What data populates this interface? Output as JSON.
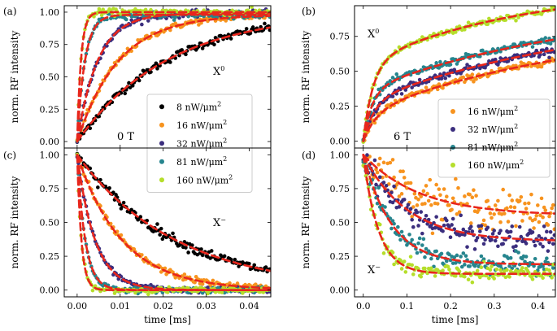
{
  "figure": {
    "xlabel": "time [ms]",
    "ylabel": "norm. RF intensity"
  },
  "chart_data": [
    {
      "panel": "(a)",
      "type": "scatter",
      "title": "",
      "xlabel": "",
      "ylabel": "norm. RF intensity",
      "xlim": [
        -0.003,
        0.045
      ],
      "ylim": [
        -0.05,
        1.05
      ],
      "xticks": [
        "0.00",
        "0.01",
        "0.02",
        "0.03",
        "0.04"
      ],
      "xtick_values": [
        0,
        0.01,
        0.02,
        0.03,
        0.04
      ],
      "yticks": [
        "0.00",
        "0.25",
        "0.50",
        "0.75",
        "1.00"
      ],
      "ytick_values": [
        0,
        0.25,
        0.5,
        0.75,
        1.0
      ],
      "show_xtick_labels": false,
      "direction": "rise",
      "annotations": [
        "X⁰",
        "0 T"
      ],
      "series": [
        {
          "name": "8 nW/μm²",
          "color": "#000000",
          "tau": 0.021,
          "amplitude": 1.0,
          "offset": 0.0,
          "noise": 0.015
        },
        {
          "name": "16 nW/μm²",
          "color": "#f7931e",
          "tau": 0.0095,
          "amplitude": 0.98,
          "offset": 0.0,
          "noise": 0.012
        },
        {
          "name": "32 nW/μm²",
          "color": "#3b2e7e",
          "tau": 0.0048,
          "amplitude": 0.99,
          "offset": 0.0,
          "noise": 0.012
        },
        {
          "name": "81 nW/μm²",
          "color": "#26858e",
          "tau": 0.0018,
          "amplitude": 0.98,
          "offset": 0.0,
          "noise": 0.012
        },
        {
          "name": "160 nW/μm²",
          "color": "#b5de2b",
          "tau": 0.0009,
          "amplitude": 1.0,
          "offset": 0.0,
          "noise": 0.012
        }
      ],
      "legend": {
        "position": "center-right",
        "entries": [
          "8 nW/μm²",
          "16 nW/μm²",
          "32 nW/μm²",
          "81 nW/μm²",
          "160 nW/μm²"
        ]
      }
    },
    {
      "panel": "(b)",
      "type": "scatter",
      "title": "",
      "xlabel": "",
      "ylabel": "norm. RF intensity",
      "xlim": [
        -0.02,
        0.44
      ],
      "ylim": [
        -0.05,
        0.97
      ],
      "xticks": [
        "0.0",
        "0.1",
        "0.2",
        "0.3",
        "0.4"
      ],
      "xtick_values": [
        0,
        0.1,
        0.2,
        0.3,
        0.4
      ],
      "yticks": [
        "0.00",
        "0.25",
        "0.50",
        "0.75"
      ],
      "ytick_values": [
        0,
        0.25,
        0.5,
        0.75
      ],
      "show_xtick_labels": false,
      "direction": "rise-biexp",
      "annotations": [
        "X⁰",
        "6 T"
      ],
      "series": [
        {
          "name": "16 nW/μm²",
          "color": "#f7931e",
          "a1": 0.2,
          "t1": 0.03,
          "a2": 0.65,
          "t2": 0.5,
          "noise": 0.012
        },
        {
          "name": "32 nW/μm²",
          "color": "#3b2e7e",
          "a1": 0.28,
          "t1": 0.025,
          "a2": 0.68,
          "t2": 0.55,
          "noise": 0.012
        },
        {
          "name": "81 nW/μm²",
          "color": "#26858e",
          "a1": 0.36,
          "t1": 0.02,
          "a2": 0.63,
          "t2": 0.5,
          "noise": 0.012
        },
        {
          "name": "160 nW/μm²",
          "color": "#b5de2b",
          "a1": 0.55,
          "t1": 0.022,
          "a2": 0.55,
          "t2": 0.35,
          "noise": 0.012
        }
      ],
      "legend": {
        "position": "lower-right",
        "entries": [
          "16 nW/μm²",
          "32 nW/μm²",
          "81 nW/μm²",
          "160 nW/μm²"
        ]
      }
    },
    {
      "panel": "(c)",
      "type": "scatter",
      "title": "",
      "xlabel": "time [ms]",
      "ylabel": "norm. RF intensity",
      "xlim": [
        -0.003,
        0.045
      ],
      "ylim": [
        -0.05,
        1.05
      ],
      "xticks": [
        "0.00",
        "0.01",
        "0.02",
        "0.03",
        "0.04"
      ],
      "xtick_values": [
        0,
        0.01,
        0.02,
        0.03,
        0.04
      ],
      "yticks": [
        "0.00",
        "0.25",
        "0.50",
        "0.75",
        "1.00"
      ],
      "ytick_values": [
        0,
        0.25,
        0.5,
        0.75,
        1.0
      ],
      "show_xtick_labels": true,
      "direction": "decay",
      "annotations": [
        "X⁻"
      ],
      "series": [
        {
          "name": "8 nW/μm²",
          "color": "#000000",
          "tau": 0.023,
          "amplitude": 1.0,
          "offset": 0.0,
          "noise": 0.018
        },
        {
          "name": "16 nW/μm²",
          "color": "#f7931e",
          "tau": 0.0105,
          "amplitude": 1.0,
          "offset": 0.0,
          "noise": 0.012
        },
        {
          "name": "32 nW/μm²",
          "color": "#3b2e7e",
          "tau": 0.0042,
          "amplitude": 1.0,
          "offset": 0.0,
          "noise": 0.01
        },
        {
          "name": "81 nW/μm²",
          "color": "#26858e",
          "tau": 0.0019,
          "amplitude": 1.0,
          "offset": 0.0,
          "noise": 0.01
        },
        {
          "name": "160 nW/μm²",
          "color": "#b5de2b",
          "tau": 0.001,
          "amplitude": 1.0,
          "offset": 0.0,
          "noise": 0.01
        }
      ]
    },
    {
      "panel": "(d)",
      "type": "scatter",
      "title": "",
      "xlabel": "time [ms]",
      "ylabel": "norm. RF intensity",
      "xlim": [
        -0.02,
        0.44
      ],
      "ylim": [
        -0.05,
        1.05
      ],
      "xticks": [
        "0.0",
        "0.1",
        "0.2",
        "0.3",
        "0.4"
      ],
      "xtick_values": [
        0,
        0.1,
        0.2,
        0.3,
        0.4
      ],
      "yticks": [
        "0.00",
        "0.25",
        "0.50",
        "0.75",
        "1.00"
      ],
      "ytick_values": [
        0,
        0.25,
        0.5,
        0.75,
        1.0
      ],
      "show_xtick_labels": true,
      "direction": "decay",
      "annotations": [
        "X⁻"
      ],
      "series": [
        {
          "name": "16 nW/μm²",
          "color": "#f7931e",
          "tau": 0.13,
          "amplitude": 0.45,
          "offset": 0.55,
          "noise": 0.07
        },
        {
          "name": "32 nW/μm²",
          "color": "#3b2e7e",
          "tau": 0.1,
          "amplitude": 0.64,
          "offset": 0.36,
          "noise": 0.045
        },
        {
          "name": "81 nW/μm²",
          "color": "#26858e",
          "tau": 0.065,
          "amplitude": 0.81,
          "offset": 0.19,
          "noise": 0.035
        },
        {
          "name": "160 nW/μm²",
          "color": "#b5de2b",
          "tau": 0.035,
          "amplitude": 0.88,
          "offset": 0.12,
          "noise": 0.03
        }
      ]
    }
  ]
}
